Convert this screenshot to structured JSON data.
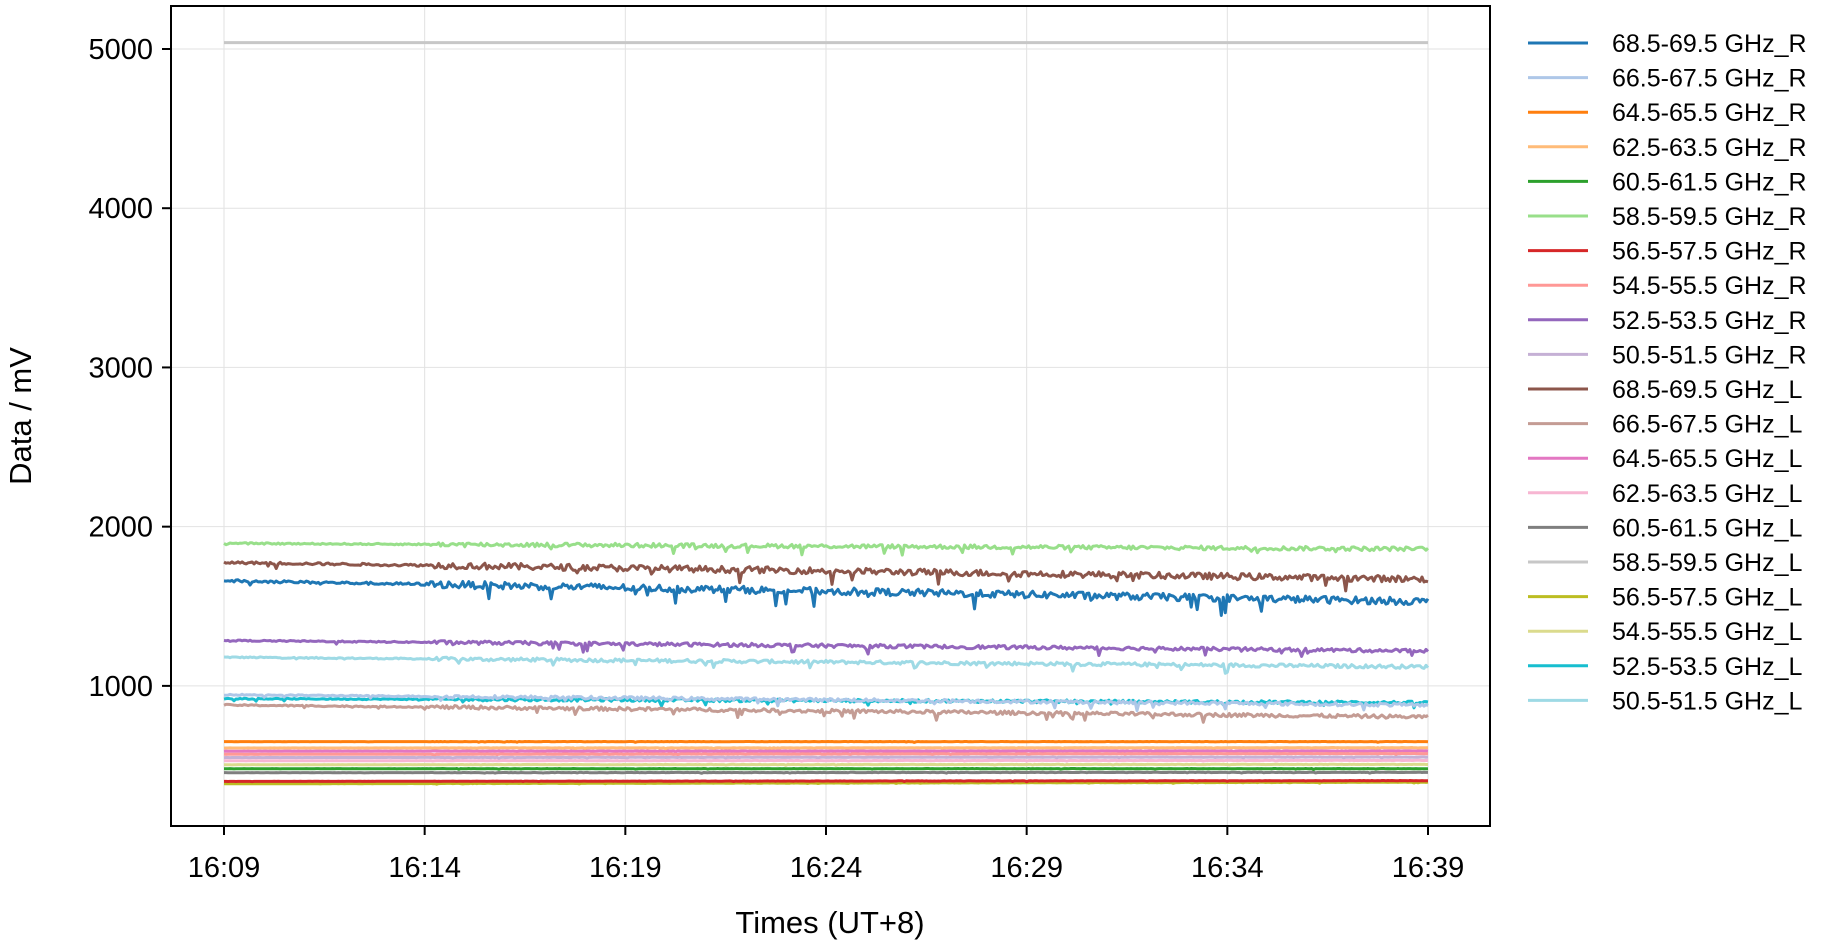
{
  "chart_data": {
    "type": "line",
    "xlabel": "Times (UT+8)",
    "ylabel": "Data / mV",
    "x_ticks": [
      "16:09",
      "16:14",
      "16:19",
      "16:24",
      "16:29",
      "16:34",
      "16:39"
    ],
    "x_range": [
      "16:09",
      "16:39"
    ],
    "y_ticks": [
      1000,
      2000,
      3000,
      4000,
      5000
    ],
    "ylim": [
      120,
      5270
    ],
    "grid": true,
    "legend_position": "right-outside",
    "series": [
      {
        "name": "68.5-69.5 GHz_R",
        "color": "#1f77b4",
        "start": 1660,
        "end": 1530,
        "noise": 45
      },
      {
        "name": "66.5-67.5 GHz_R",
        "color": "#aec7e8",
        "start": 945,
        "end": 880,
        "noise": 20
      },
      {
        "name": "64.5-65.5 GHz_R",
        "color": "#ff7f0e",
        "start": 650,
        "end": 650,
        "noise": 2
      },
      {
        "name": "62.5-63.5 GHz_R",
        "color": "#ffbb78",
        "start": 610,
        "end": 612,
        "noise": 2
      },
      {
        "name": "60.5-61.5 GHz_R",
        "color": "#2ca02c",
        "start": 480,
        "end": 480,
        "noise": 2
      },
      {
        "name": "58.5-59.5 GHz_R",
        "color": "#98df8a",
        "start": 1895,
        "end": 1860,
        "noise": 25
      },
      {
        "name": "56.5-57.5 GHz_R",
        "color": "#d62728",
        "start": 400,
        "end": 405,
        "noise": 2
      },
      {
        "name": "54.5-55.5 GHz_R",
        "color": "#ff9896",
        "start": 570,
        "end": 575,
        "noise": 2
      },
      {
        "name": "52.5-53.5 GHz_R",
        "color": "#9467bd",
        "start": 1285,
        "end": 1220,
        "noise": 22
      },
      {
        "name": "50.5-51.5 GHz_R",
        "color": "#c5b0d5",
        "start": 550,
        "end": 553,
        "noise": 2
      },
      {
        "name": "68.5-69.5 GHz_L",
        "color": "#8c564b",
        "start": 1775,
        "end": 1670,
        "noise": 40
      },
      {
        "name": "66.5-67.5 GHz_L",
        "color": "#c49c94",
        "start": 880,
        "end": 805,
        "noise": 22
      },
      {
        "name": "64.5-65.5 GHz_L",
        "color": "#e377c2",
        "start": 590,
        "end": 592,
        "noise": 2
      },
      {
        "name": "62.5-63.5 GHz_L",
        "color": "#f7b6d2",
        "start": 530,
        "end": 532,
        "noise": 2
      },
      {
        "name": "60.5-61.5 GHz_L",
        "color": "#7f7f7f",
        "start": 455,
        "end": 457,
        "noise": 2
      },
      {
        "name": "58.5-59.5 GHz_L",
        "color": "#c7c7c7",
        "start": 5040,
        "end": 5040,
        "noise": 0
      },
      {
        "name": "56.5-57.5 GHz_L",
        "color": "#bcbd22",
        "start": 385,
        "end": 395,
        "noise": 2
      },
      {
        "name": "54.5-55.5 GHz_L",
        "color": "#dbdb8d",
        "start": 505,
        "end": 507,
        "noise": 2
      },
      {
        "name": "52.5-53.5 GHz_L",
        "color": "#17becf",
        "start": 920,
        "end": 895,
        "noise": 18
      },
      {
        "name": "50.5-51.5 GHz_L",
        "color": "#9edae5",
        "start": 1180,
        "end": 1120,
        "noise": 22
      }
    ]
  }
}
